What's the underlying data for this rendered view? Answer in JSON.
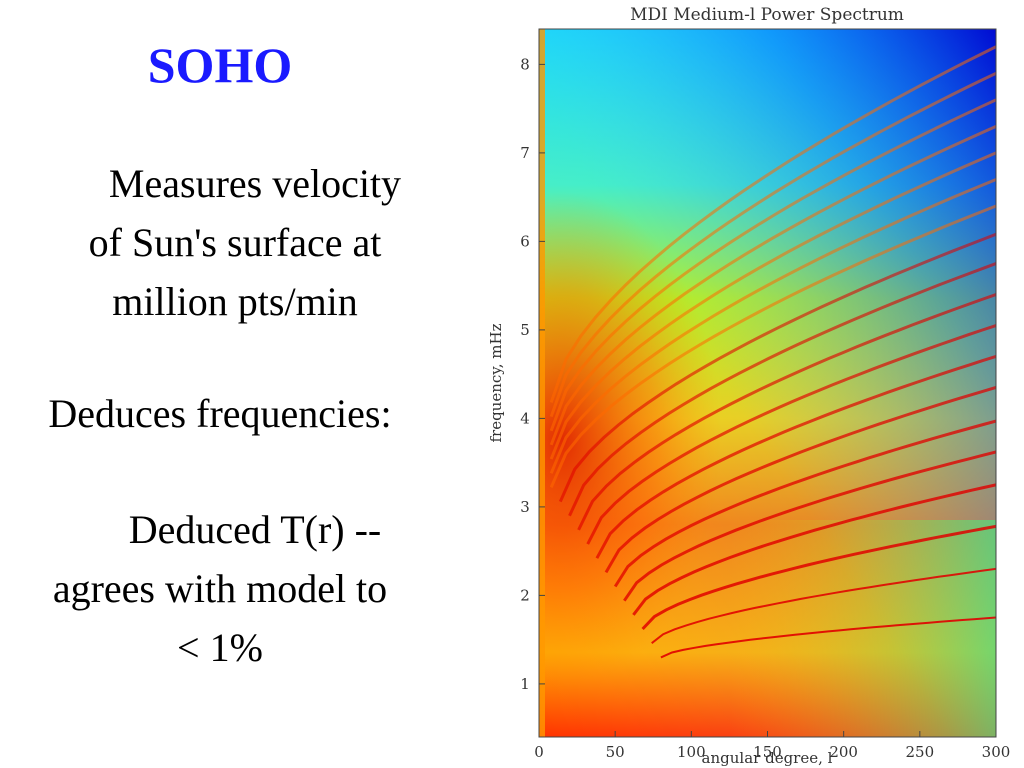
{
  "slide": {
    "title": "SOHO",
    "bullet1": [
      "Measures velocity",
      "of Sun's surface at",
      "million pts/min"
    ],
    "bullet2": "Deduces frequencies:",
    "bullet3": [
      "Deduced T(r) --",
      "agrees with model to",
      "< 1%"
    ]
  },
  "chart_data": {
    "type": "heatmap",
    "title": "MDI Medium-l Power Spectrum",
    "xlabel": "angular degree, l",
    "ylabel": "frequency, mHz",
    "xlim": [
      0,
      300
    ],
    "ylim": [
      0.4,
      8.4
    ],
    "xticks": [
      0,
      50,
      100,
      150,
      200,
      250,
      300
    ],
    "yticks": [
      1,
      2,
      3,
      4,
      5,
      6,
      7,
      8
    ],
    "colormap": "jet",
    "ridges_note_ends_at_l300_mHz": [
      1.75,
      2.3,
      2.78,
      3.25,
      3.62,
      3.97,
      4.35,
      4.7,
      5.05,
      5.4,
      5.75,
      6.08,
      6.4,
      6.7,
      7.0,
      7.3,
      7.6,
      7.9,
      8.2
    ]
  }
}
